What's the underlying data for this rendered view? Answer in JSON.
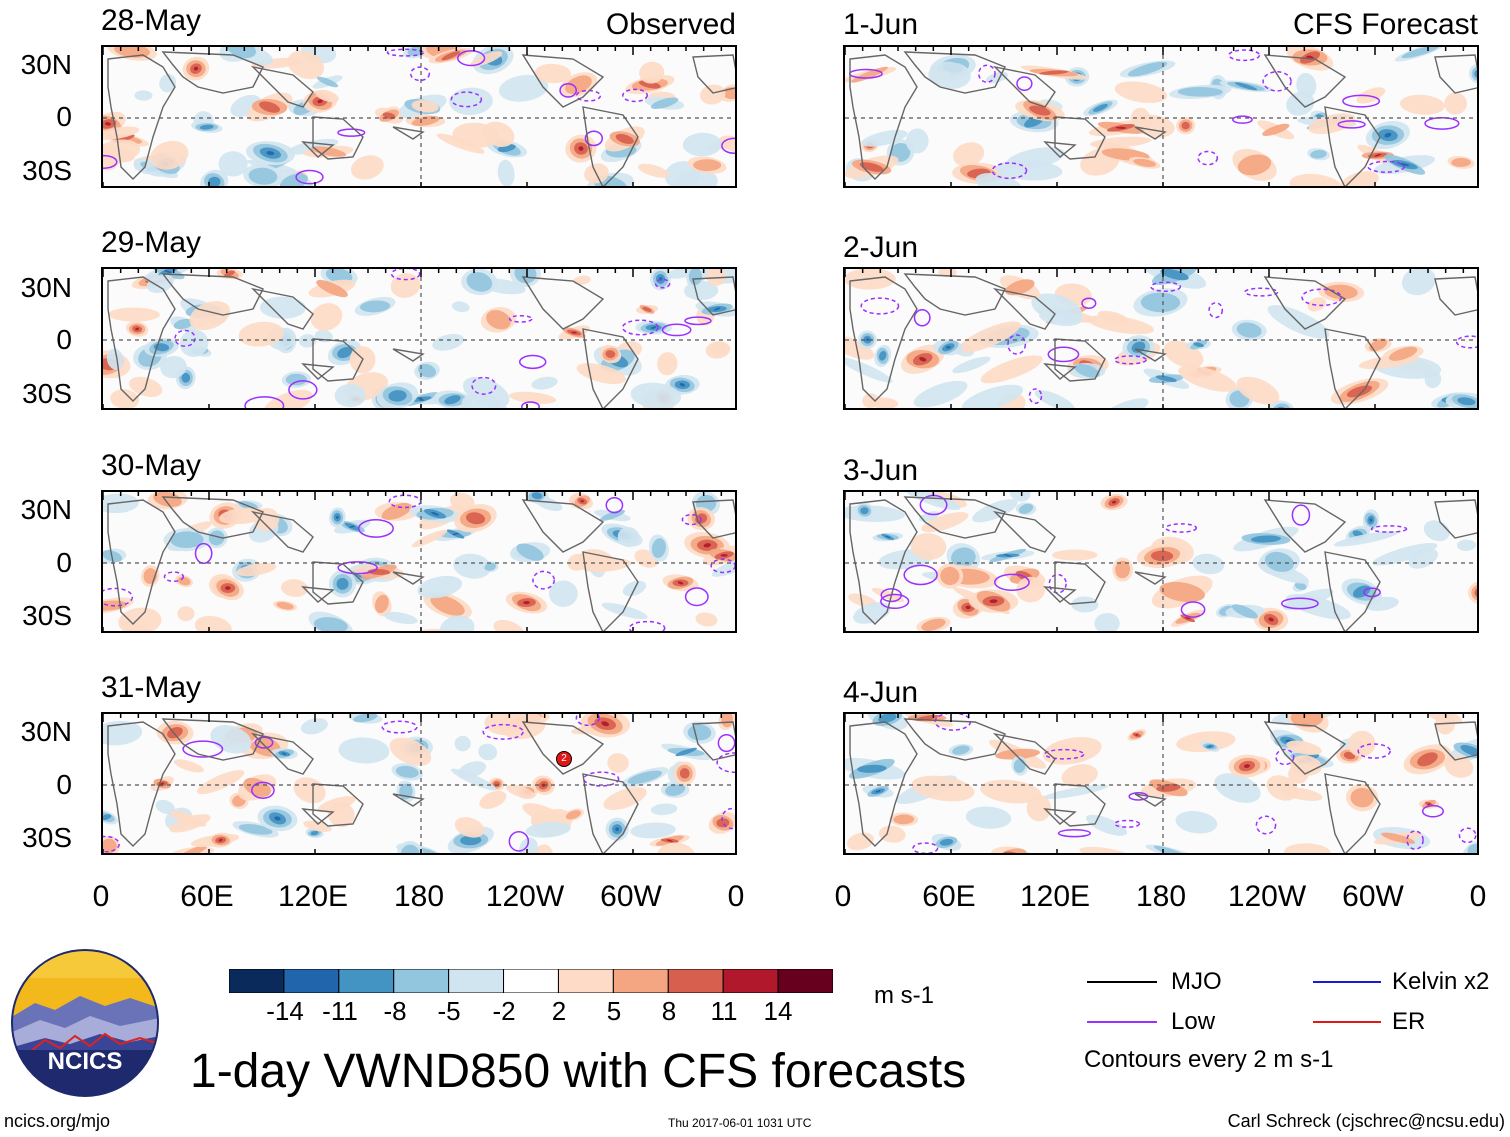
{
  "left_column": {
    "label": "Observed",
    "panels": [
      {
        "date": "28-May"
      },
      {
        "date": "29-May"
      },
      {
        "date": "30-May"
      },
      {
        "date": "31-May"
      }
    ]
  },
  "right_column": {
    "label": "CFS Forecast",
    "panels": [
      {
        "date": "1-Jun"
      },
      {
        "date": "2-Jun"
      },
      {
        "date": "3-Jun"
      },
      {
        "date": "4-Jun"
      }
    ]
  },
  "lat_labels": [
    "30N",
    "0",
    "30S"
  ],
  "lon_labels": [
    "0",
    "60E",
    "120E",
    "180",
    "120W",
    "60W",
    "0"
  ],
  "storm_marker": "2",
  "colorbar": {
    "unit": "m s-1",
    "ticks": [
      "-14",
      "-11",
      "-8",
      "-5",
      "-2",
      "2",
      "5",
      "8",
      "11",
      "14"
    ],
    "colors": [
      "#0b2a5c",
      "#2166ac",
      "#4393c3",
      "#92c5de",
      "#d1e5f0",
      "#ffffff",
      "#fddbc7",
      "#f4a582",
      "#d6604d",
      "#b2182b",
      "#67001f"
    ]
  },
  "legend": {
    "items": [
      {
        "label": "MJO",
        "color": "#000000"
      },
      {
        "label": "Kelvin x2",
        "color": "#1a1ad6"
      },
      {
        "label": "Low",
        "color": "#9b30ff"
      },
      {
        "label": "ER",
        "color": "#e01818"
      }
    ],
    "contour_note": "Contours every 2 m s-1"
  },
  "logo": {
    "text": "NCICS"
  },
  "title": "1-day VWND850 with CFS forecasts",
  "footer": {
    "url": "ncics.org/mjo",
    "timestamp": "Thu 2017-06-01 1031 UTC",
    "credit": "Carl Schreck (cjschrec@ncsu.edu)"
  }
}
